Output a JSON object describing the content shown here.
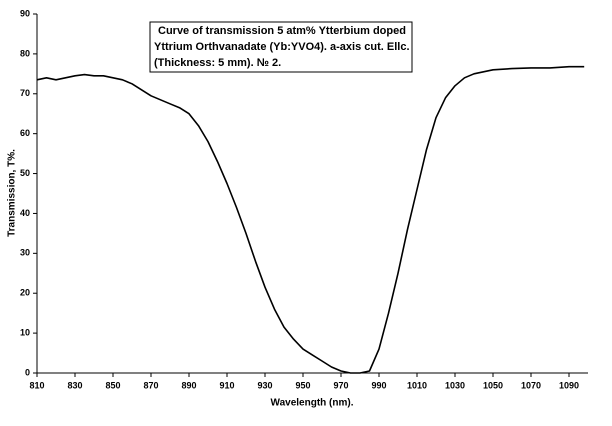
{
  "chart_data": {
    "type": "line",
    "annotation": [
      "Curve of transmission 5 atm% Ytterbium doped",
      "Yttrium Orthvanadate (Yb:YVO4). a-axis cut. Ellc.",
      "(Thickness: 5 mm).   № 2."
    ],
    "x_label": "Wavelength (nm).",
    "y_label": "Transmission, T%.",
    "x": [
      810,
      815,
      820,
      825,
      830,
      835,
      840,
      845,
      850,
      855,
      860,
      865,
      870,
      875,
      880,
      885,
      890,
      895,
      900,
      905,
      910,
      915,
      920,
      925,
      930,
      935,
      940,
      945,
      950,
      955,
      960,
      965,
      970,
      975,
      980,
      985,
      990,
      995,
      1000,
      1005,
      1010,
      1015,
      1020,
      1025,
      1030,
      1035,
      1040,
      1045,
      1050,
      1060,
      1070,
      1080,
      1090,
      1098
    ],
    "values": [
      73.5,
      74,
      73.5,
      74,
      74.5,
      74.8,
      74.5,
      74.5,
      74,
      73.5,
      72.5,
      71,
      69.5,
      68.5,
      67.5,
      66.5,
      65,
      62,
      58,
      53,
      47.5,
      41.5,
      35,
      28,
      21.5,
      16,
      11.5,
      8.5,
      6,
      4.5,
      3,
      1.5,
      0.5,
      0,
      0,
      0.5,
      6,
      15,
      25,
      36,
      46,
      56,
      64,
      69,
      72,
      74,
      75,
      75.5,
      76,
      76.3,
      76.5,
      76.5,
      76.8,
      76.8
    ],
    "color": "#000000",
    "xlim": [
      810,
      1100
    ],
    "xticks": [
      810,
      830,
      850,
      870,
      890,
      910,
      930,
      950,
      970,
      990,
      1010,
      1030,
      1050,
      1070,
      1090
    ],
    "ylim": [
      0,
      90
    ],
    "yticks": [
      0,
      10,
      20,
      30,
      40,
      50,
      60,
      70,
      80,
      90
    ],
    "grid": false
  }
}
